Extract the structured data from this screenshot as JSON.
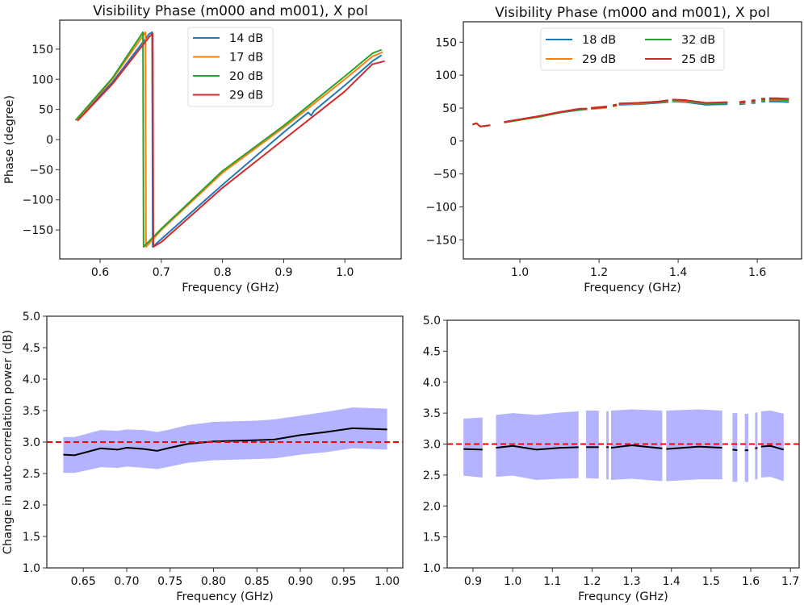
{
  "chart_data": [
    {
      "type": "line",
      "title": "Visibility Phase (m000 and m001), X pol",
      "xlabel": "Frequency (GHz)",
      "ylabel": "Phase (degree)",
      "xlim": [
        0.534,
        1.092
      ],
      "ylim": [
        -198,
        198
      ],
      "xticks": [
        0.6,
        0.7,
        0.8,
        0.9,
        1.0
      ],
      "xtick_labels": [
        "0.6",
        "0.7",
        "0.8",
        "0.9",
        "1.0"
      ],
      "yticks": [
        150,
        100,
        50,
        0,
        -50,
        -100,
        -150
      ],
      "ytick_labels": [
        "150",
        "100",
        "50",
        "0",
        "−50",
        "−100",
        "−150"
      ],
      "legend": {
        "placement": "upper-center",
        "columns": 1
      },
      "series": [
        {
          "name": "14 dB",
          "color": "#1f77b4",
          "points": [
            [
              0.562,
              33
            ],
            [
              0.62,
              95
            ],
            [
              0.68,
              175
            ],
            [
              0.685,
              178
            ],
            [
              0.686,
              -178
            ],
            [
              0.7,
              -165
            ],
            [
              0.8,
              -75
            ],
            [
              0.9,
              12
            ],
            [
              0.94,
              45
            ],
            [
              0.945,
              40
            ],
            [
              0.95,
              48
            ],
            [
              1.0,
              90
            ],
            [
              1.045,
              130
            ],
            [
              1.06,
              140
            ]
          ]
        },
        {
          "name": "17 dB",
          "color": "#ff7f0e",
          "points": [
            [
              0.562,
              33
            ],
            [
              0.62,
              100
            ],
            [
              0.674,
              178
            ],
            [
              0.675,
              -178
            ],
            [
              0.7,
              -150
            ],
            [
              0.8,
              -55
            ],
            [
              0.9,
              20
            ],
            [
              1.0,
              100
            ],
            [
              1.045,
              138
            ],
            [
              1.062,
              145
            ]
          ]
        },
        {
          "name": "20 dB",
          "color": "#2ca02c",
          "points": [
            [
              0.56,
              32
            ],
            [
              0.62,
              102
            ],
            [
              0.67,
              178
            ],
            [
              0.671,
              -178
            ],
            [
              0.7,
              -148
            ],
            [
              0.8,
              -52
            ],
            [
              0.9,
              23
            ],
            [
              1.0,
              105
            ],
            [
              1.045,
              143
            ],
            [
              1.06,
              149
            ]
          ]
        },
        {
          "name": "29 dB",
          "color": "#d62728",
          "points": [
            [
              0.563,
              31
            ],
            [
              0.62,
              92
            ],
            [
              0.68,
              170
            ],
            [
              0.686,
              176
            ],
            [
              0.687,
              -178
            ],
            [
              0.7,
              -170
            ],
            [
              0.8,
              -80
            ],
            [
              0.9,
              0
            ],
            [
              1.0,
              80
            ],
            [
              1.045,
              125
            ],
            [
              1.065,
              130
            ]
          ]
        }
      ]
    },
    {
      "type": "line",
      "title": "Visibility Phase (m000 and m001), X pol",
      "xlabel": "Frequency (GHz)",
      "ylabel": "",
      "xlim": [
        0.857,
        1.712
      ],
      "ylim": [
        -179,
        181
      ],
      "xticks": [
        1.0,
        1.2,
        1.4,
        1.6
      ],
      "xtick_labels": [
        "1.0",
        "1.2",
        "1.4",
        "1.6"
      ],
      "yticks": [
        150,
        100,
        50,
        0,
        -50,
        -100,
        -150
      ],
      "ytick_labels": [
        "150",
        "100",
        "50",
        "0",
        "−50",
        "−100",
        "−150"
      ],
      "legend": {
        "placement": "upper-center",
        "columns": 2
      },
      "x": [
        0.88,
        0.89,
        0.9,
        0.925,
        null,
        0.96,
        1.0,
        1.05,
        1.1,
        1.15,
        1.17,
        null,
        1.18,
        1.22,
        null,
        1.235,
        1.245,
        null,
        1.25,
        1.3,
        1.35,
        1.375,
        null,
        1.385,
        1.42,
        1.47,
        1.525,
        null,
        1.555,
        1.57,
        null,
        1.585,
        1.595,
        null,
        1.61,
        1.62,
        null,
        1.63,
        1.65,
        1.68
      ],
      "series": [
        {
          "name": "18 dB",
          "color": "#1f77b4",
          "values": [
            25,
            27,
            22,
            24,
            null,
            28,
            32,
            37,
            43,
            47,
            48,
            null,
            49,
            51,
            null,
            53,
            54,
            null,
            55,
            56,
            58,
            59,
            null,
            60,
            59,
            55,
            56,
            null,
            56,
            57,
            null,
            58,
            58,
            null,
            60,
            60,
            null,
            60,
            60,
            59
          ]
        },
        {
          "name": "29 dB",
          "color": "#ff7f0e",
          "values": [
            25,
            27,
            22,
            24,
            null,
            28,
            32,
            37,
            43,
            48,
            48,
            null,
            49,
            51,
            null,
            53,
            54,
            null,
            56,
            57,
            59,
            60,
            null,
            61,
            60,
            57,
            58,
            null,
            58,
            58,
            null,
            59,
            60,
            null,
            61,
            62,
            null,
            62,
            62,
            61
          ]
        },
        {
          "name": "32 dB",
          "color": "#2ca02c",
          "values": [
            25,
            27,
            22,
            24,
            null,
            28,
            32,
            37,
            43,
            48,
            49,
            null,
            50,
            52,
            null,
            54,
            55,
            null,
            56,
            58,
            59,
            61,
            null,
            62,
            61,
            57,
            58,
            null,
            58,
            59,
            null,
            60,
            60,
            null,
            62,
            62,
            null,
            63,
            63,
            62
          ]
        },
        {
          "name": "25 dB",
          "color": "#d62728",
          "values": [
            25,
            27,
            22,
            24,
            null,
            29,
            33,
            38,
            44,
            49,
            49,
            null,
            50,
            52,
            null,
            54,
            55,
            null,
            57,
            58,
            60,
            62,
            null,
            63,
            62,
            58,
            59,
            null,
            59,
            60,
            null,
            61,
            62,
            null,
            64,
            64,
            null,
            65,
            65,
            64
          ]
        }
      ]
    },
    {
      "type": "area",
      "title": "",
      "xlabel": "Frequency (GHz)",
      "ylabel": "Change in auto-correlation power (dB)",
      "xlim": [
        0.608,
        1.018
      ],
      "ylim": [
        1.0,
        5.0
      ],
      "xticks": [
        0.65,
        0.7,
        0.75,
        0.8,
        0.85,
        0.9,
        0.95,
        1.0
      ],
      "xtick_labels": [
        "0.65",
        "0.70",
        "0.75",
        "0.80",
        "0.85",
        "0.90",
        "0.95",
        "1.00"
      ],
      "yticks": [
        5.0,
        4.5,
        4.0,
        3.5,
        3.0,
        2.5,
        2.0,
        1.5,
        1.0
      ],
      "ytick_labels": [
        "5.0",
        "4.5",
        "4.0",
        "3.5",
        "3.0",
        "2.5",
        "2.0",
        "1.5",
        "1.0"
      ],
      "reference_line": {
        "y": 3.0,
        "color": "#ff0000",
        "style": "dashed"
      },
      "band_color": "#b3b3ff",
      "x": [
        0.627,
        0.64,
        0.67,
        0.69,
        0.7,
        0.72,
        0.735,
        0.75,
        0.77,
        0.8,
        0.85,
        0.87,
        0.9,
        0.93,
        0.96,
        1.0
      ],
      "mean": [
        2.8,
        2.79,
        2.9,
        2.88,
        2.91,
        2.89,
        2.86,
        2.91,
        2.97,
        3.01,
        3.03,
        3.04,
        3.11,
        3.16,
        3.22,
        3.2
      ],
      "upper": [
        3.08,
        3.08,
        3.19,
        3.18,
        3.2,
        3.19,
        3.16,
        3.2,
        3.27,
        3.32,
        3.34,
        3.36,
        3.42,
        3.48,
        3.55,
        3.53
      ],
      "lower": [
        2.51,
        2.51,
        2.6,
        2.59,
        2.61,
        2.59,
        2.57,
        2.61,
        2.67,
        2.71,
        2.73,
        2.74,
        2.8,
        2.84,
        2.9,
        2.88
      ]
    },
    {
      "type": "area",
      "title": "",
      "xlabel": "Frequncy (GHz)",
      "ylabel": "",
      "xlim": [
        0.835,
        1.722
      ],
      "ylim": [
        1.0,
        5.0
      ],
      "xticks": [
        0.9,
        1.0,
        1.1,
        1.2,
        1.3,
        1.4,
        1.5,
        1.6,
        1.7
      ],
      "xtick_labels": [
        "0.9",
        "1.0",
        "1.1",
        "1.2",
        "1.3",
        "1.4",
        "1.5",
        "1.6",
        "1.7"
      ],
      "yticks": [
        5.0,
        4.5,
        4.0,
        3.5,
        3.0,
        2.5,
        2.0,
        1.5,
        1.0
      ],
      "ytick_labels": [
        "5.0",
        "4.5",
        "4.0",
        "3.5",
        "3.0",
        "2.5",
        "2.0",
        "1.5",
        "1.0"
      ],
      "reference_line": {
        "y": 3.0,
        "color": "#ff0000",
        "style": "dashed"
      },
      "band_color": "#b3b3ff",
      "x": [
        0.876,
        0.924,
        null,
        0.958,
        1.0,
        1.06,
        1.12,
        1.166,
        null,
        1.185,
        1.217,
        null,
        1.236,
        1.242,
        null,
        1.248,
        1.3,
        1.377,
        null,
        1.387,
        1.47,
        1.528,
        null,
        1.554,
        1.566,
        null,
        1.585,
        1.594,
        null,
        1.611,
        1.617,
        null,
        1.626,
        1.65,
        1.683
      ],
      "mean": [
        2.92,
        2.91,
        null,
        2.94,
        2.97,
        2.91,
        2.94,
        2.95,
        null,
        2.95,
        2.95,
        null,
        2.95,
        2.95,
        null,
        2.94,
        2.98,
        2.93,
        null,
        2.92,
        2.96,
        2.94,
        null,
        2.91,
        2.9,
        null,
        2.9,
        2.9,
        null,
        2.93,
        2.94,
        null,
        2.96,
        2.97,
        2.91
      ],
      "upper": [
        3.41,
        3.43,
        null,
        3.47,
        3.5,
        3.47,
        3.51,
        3.53,
        null,
        3.54,
        3.54,
        null,
        3.53,
        3.53,
        null,
        3.54,
        3.56,
        3.54,
        null,
        3.54,
        3.56,
        3.54,
        null,
        3.5,
        3.5,
        null,
        3.49,
        3.49,
        null,
        3.51,
        3.51,
        null,
        3.53,
        3.54,
        3.49
      ],
      "lower": [
        2.49,
        2.46,
        null,
        2.47,
        2.49,
        2.42,
        2.44,
        2.45,
        null,
        2.45,
        2.44,
        null,
        2.43,
        2.43,
        null,
        2.42,
        2.44,
        2.4,
        null,
        2.4,
        2.43,
        2.43,
        null,
        2.39,
        2.39,
        null,
        2.39,
        2.39,
        null,
        2.43,
        2.43,
        null,
        2.46,
        2.47,
        2.4
      ]
    }
  ]
}
